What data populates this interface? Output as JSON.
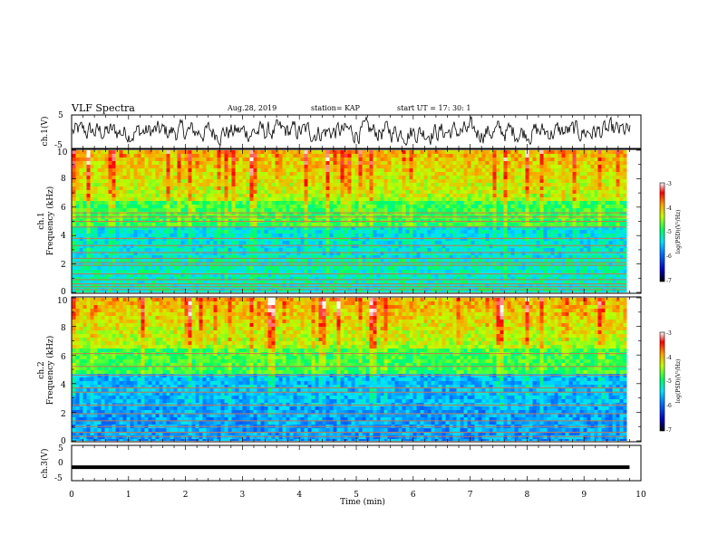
{
  "header": {
    "title": "VLF Spectra",
    "date": "Aug.28, 2019",
    "station": "station= KAP",
    "start": "start  UT =   17: 30: 1"
  },
  "chart_data": [
    {
      "type": "line",
      "panel": "ch1-waveform",
      "ylabel": "ch.1(V)",
      "ylim": [
        -5,
        5
      ],
      "y_ticks": [
        "5",
        "-5"
      ],
      "xlim": [
        0,
        10
      ],
      "description_values": {
        "noise_amplitude_v": 3
      }
    },
    {
      "type": "heatmap",
      "panel": "ch1-spectrogram",
      "ylabel_line1": "ch.1",
      "ylabel_line2": "Frequency (kHz)",
      "ylim": [
        0,
        10
      ],
      "y_ticks": [
        "0",
        "2",
        "4",
        "6",
        "8",
        "10"
      ],
      "xlim": [
        0,
        9.8
      ],
      "colorbar": {
        "label": "log(PSD)(V²/Hz)",
        "range": [
          -7,
          -3
        ],
        "ticks": [
          "-3",
          "-4",
          "-5",
          "-6",
          "-7"
        ]
      },
      "spectral_lines_khz": [
        0.2,
        0.4,
        0.6,
        0.9,
        1.3,
        1.9,
        2.1,
        2.4,
        2.8,
        3.3,
        3.8,
        4.6,
        5.0,
        5.3,
        5.6
      ]
    },
    {
      "type": "heatmap",
      "panel": "ch2-spectrogram",
      "ylabel_line1": "ch.2",
      "ylabel_line2": "Frequency (kHz)",
      "ylim": [
        0,
        10
      ],
      "y_ticks": [
        "0",
        "2",
        "4",
        "6",
        "8",
        "10"
      ],
      "xlim": [
        0,
        9.8
      ],
      "colorbar": {
        "label": "log(PSD)(V²/Hz)",
        "range": [
          -7,
          -3
        ],
        "ticks": [
          "-3",
          "-4",
          "-5",
          "-6",
          "-7"
        ]
      },
      "spectral_lines_khz": [
        0.3,
        0.6,
        1.0,
        1.4,
        1.9,
        2.5,
        3.4,
        3.7,
        4.6,
        5.2,
        6.1
      ]
    },
    {
      "type": "line",
      "panel": "ch3-waveform",
      "ylabel": "ch.3(V)",
      "ylim": [
        -5,
        5
      ],
      "y_ticks": [
        "5",
        "0",
        "-5"
      ],
      "xlim": [
        0,
        10
      ],
      "x_ticks": [
        "0",
        "1",
        "2",
        "3",
        "4",
        "5",
        "6",
        "7",
        "8",
        "9",
        "10"
      ],
      "xlabel": "Time (min)",
      "x": [
        0,
        9.8
      ],
      "y": [
        -1.2,
        -1.2
      ]
    }
  ]
}
